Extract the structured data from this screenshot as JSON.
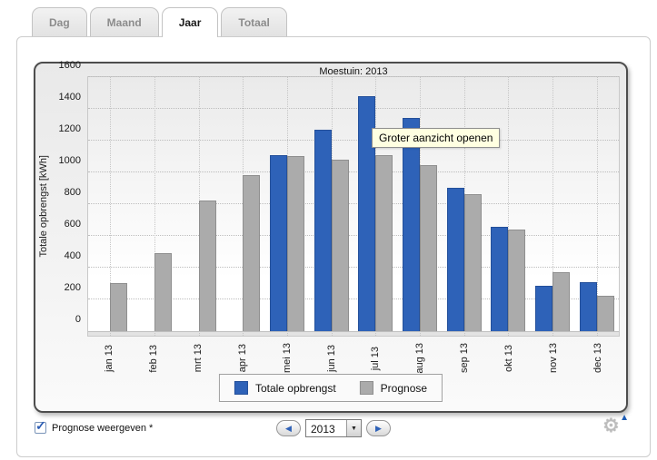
{
  "tabs": [
    {
      "label": "Dag",
      "active": false
    },
    {
      "label": "Maand",
      "active": false
    },
    {
      "label": "Jaar",
      "active": true
    },
    {
      "label": "Totaal",
      "active": false
    }
  ],
  "chart_data": {
    "type": "bar",
    "title": "Moestuin: 2013",
    "ylabel": "Totale opbrengst [kWh]",
    "ylim": [
      0,
      1600
    ],
    "ytick_step": 200,
    "grid": true,
    "legend_position": "bottom",
    "categories": [
      "jan 13",
      "feb 13",
      "mrt 13",
      "apr 13",
      "mei 13",
      "jun 13",
      "jul 13",
      "aug 13",
      "sep 13",
      "okt 13",
      "nov 13",
      "dec 13"
    ],
    "series": [
      {
        "name": "Totale opbrengst",
        "color": "#2e62b8",
        "border": "#24509a",
        "values": [
          null,
          null,
          null,
          null,
          1110,
          1270,
          1480,
          1345,
          905,
          655,
          285,
          310
        ]
      },
      {
        "name": "Prognose",
        "color": "#ababab",
        "border": "#8f8f8f",
        "values": [
          300,
          490,
          820,
          985,
          1100,
          1080,
          1110,
          1045,
          860,
          640,
          370,
          225
        ]
      }
    ]
  },
  "tooltip": {
    "text": "Groter aanzicht openen"
  },
  "controls": {
    "prognose_checkbox": {
      "label": "Prognose weergeven *",
      "checked": true
    },
    "year_selector": {
      "value": "2013",
      "prev_icon": "left-arrow",
      "next_icon": "right-arrow"
    },
    "settings_icon": "gear"
  },
  "icons": {
    "prev_glyph": "◀",
    "next_glyph": "▶",
    "dropdown_glyph": "▼",
    "check_glyph": "✓",
    "gear_glyph": "⚙",
    "gear_triangle_glyph": "▲"
  }
}
